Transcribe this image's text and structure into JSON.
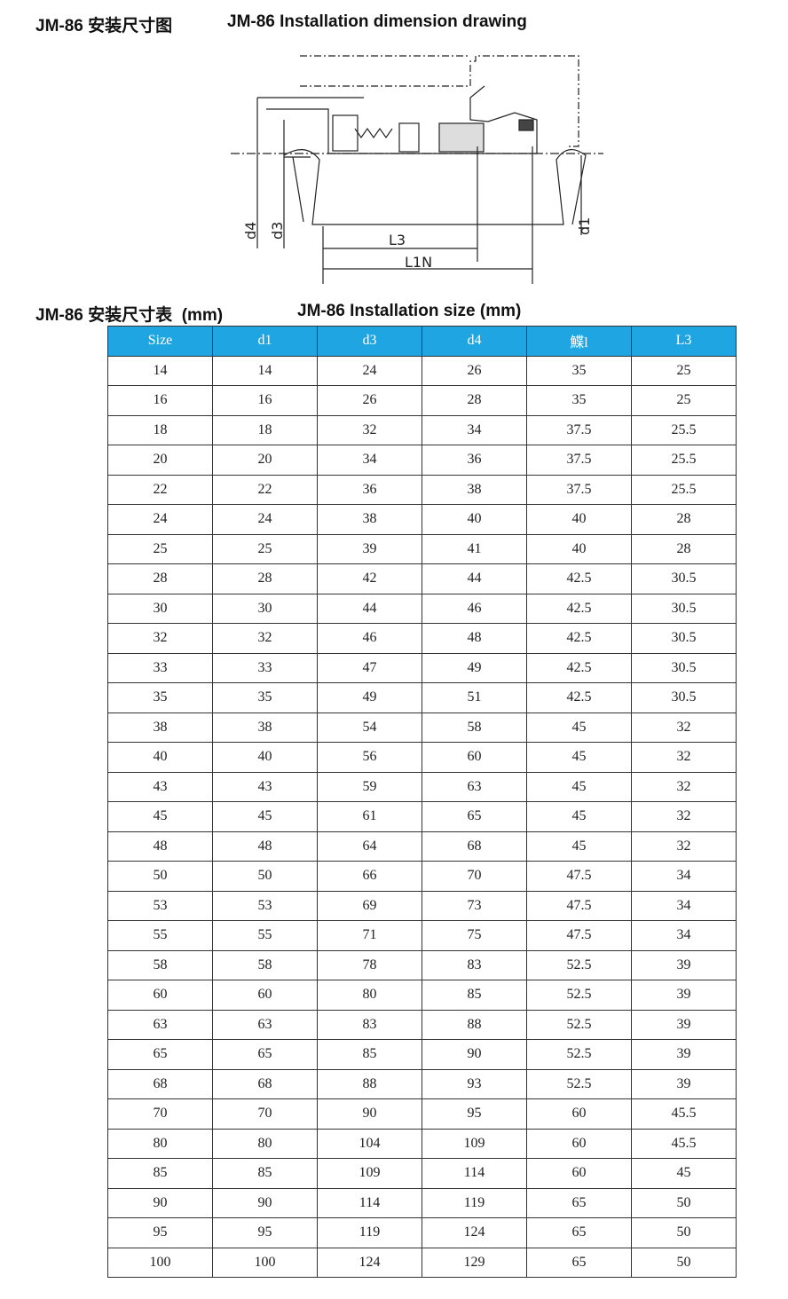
{
  "header": {
    "title_cn": "JM-86 安装尺寸图",
    "title_en": "JM-86 Installation dimension drawing"
  },
  "diagram": {
    "labels": [
      "d4",
      "d3",
      "L3",
      "L1N",
      "d1"
    ]
  },
  "table_title": {
    "cn": "JM-86 安装尺寸表  (mm)",
    "en": "JM-86 Installation size (mm)"
  },
  "table": {
    "header": [
      "Size",
      "d1",
      "d3",
      "d4",
      "鰈l",
      "L3"
    ],
    "rows": [
      [
        14,
        14,
        24,
        26,
        35,
        25
      ],
      [
        16,
        16,
        26,
        28,
        35,
        25
      ],
      [
        18,
        18,
        32,
        34,
        37.5,
        25.5
      ],
      [
        20,
        20,
        34,
        36,
        37.5,
        25.5
      ],
      [
        22,
        22,
        36,
        38,
        37.5,
        25.5
      ],
      [
        24,
        24,
        38,
        40,
        40,
        28
      ],
      [
        25,
        25,
        39,
        41,
        40,
        28
      ],
      [
        28,
        28,
        42,
        44,
        42.5,
        30.5
      ],
      [
        30,
        30,
        44,
        46,
        42.5,
        30.5
      ],
      [
        32,
        32,
        46,
        48,
        42.5,
        30.5
      ],
      [
        33,
        33,
        47,
        49,
        42.5,
        30.5
      ],
      [
        35,
        35,
        49,
        51,
        42.5,
        30.5
      ],
      [
        38,
        38,
        54,
        58,
        45,
        32
      ],
      [
        40,
        40,
        56,
        60,
        45,
        32
      ],
      [
        43,
        43,
        59,
        63,
        45,
        32
      ],
      [
        45,
        45,
        61,
        65,
        45,
        32
      ],
      [
        48,
        48,
        64,
        68,
        45,
        32
      ],
      [
        50,
        50,
        66,
        70,
        47.5,
        34
      ],
      [
        53,
        53,
        69,
        73,
        47.5,
        34
      ],
      [
        55,
        55,
        71,
        75,
        47.5,
        34
      ],
      [
        58,
        58,
        78,
        83,
        52.5,
        39
      ],
      [
        60,
        60,
        80,
        85,
        52.5,
        39
      ],
      [
        63,
        63,
        83,
        88,
        52.5,
        39
      ],
      [
        65,
        65,
        85,
        90,
        52.5,
        39
      ],
      [
        68,
        68,
        88,
        93,
        52.5,
        39
      ],
      [
        70,
        70,
        90,
        95,
        60,
        45.5
      ],
      [
        80,
        80,
        104,
        109,
        60,
        45.5
      ],
      [
        85,
        85,
        109,
        114,
        60,
        45
      ],
      [
        90,
        90,
        114,
        119,
        65,
        50
      ],
      [
        95,
        95,
        119,
        124,
        65,
        50
      ],
      [
        100,
        100,
        124,
        129,
        65,
        50
      ]
    ]
  }
}
